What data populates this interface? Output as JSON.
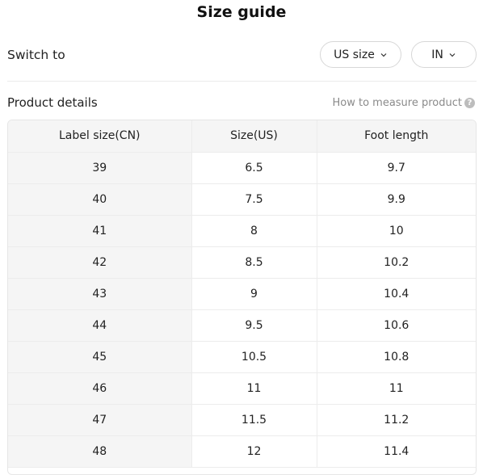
{
  "title": "Size guide",
  "switch": {
    "label": "Switch to",
    "size_system": "US size",
    "unit": "IN"
  },
  "details": {
    "label": "Product details",
    "measure_link": "How to measure product"
  },
  "table": {
    "headers": [
      "Label size(CN)",
      "Size(US)",
      "Foot length"
    ],
    "rows": [
      [
        "39",
        "6.5",
        "9.7"
      ],
      [
        "40",
        "7.5",
        "9.9"
      ],
      [
        "41",
        "8",
        "10"
      ],
      [
        "42",
        "8.5",
        "10.2"
      ],
      [
        "43",
        "9",
        "10.4"
      ],
      [
        "44",
        "9.5",
        "10.6"
      ],
      [
        "45",
        "10.5",
        "10.8"
      ],
      [
        "46",
        "11",
        "11"
      ],
      [
        "47",
        "11.5",
        "11.2"
      ],
      [
        "48",
        "12",
        "11.4"
      ]
    ]
  }
}
